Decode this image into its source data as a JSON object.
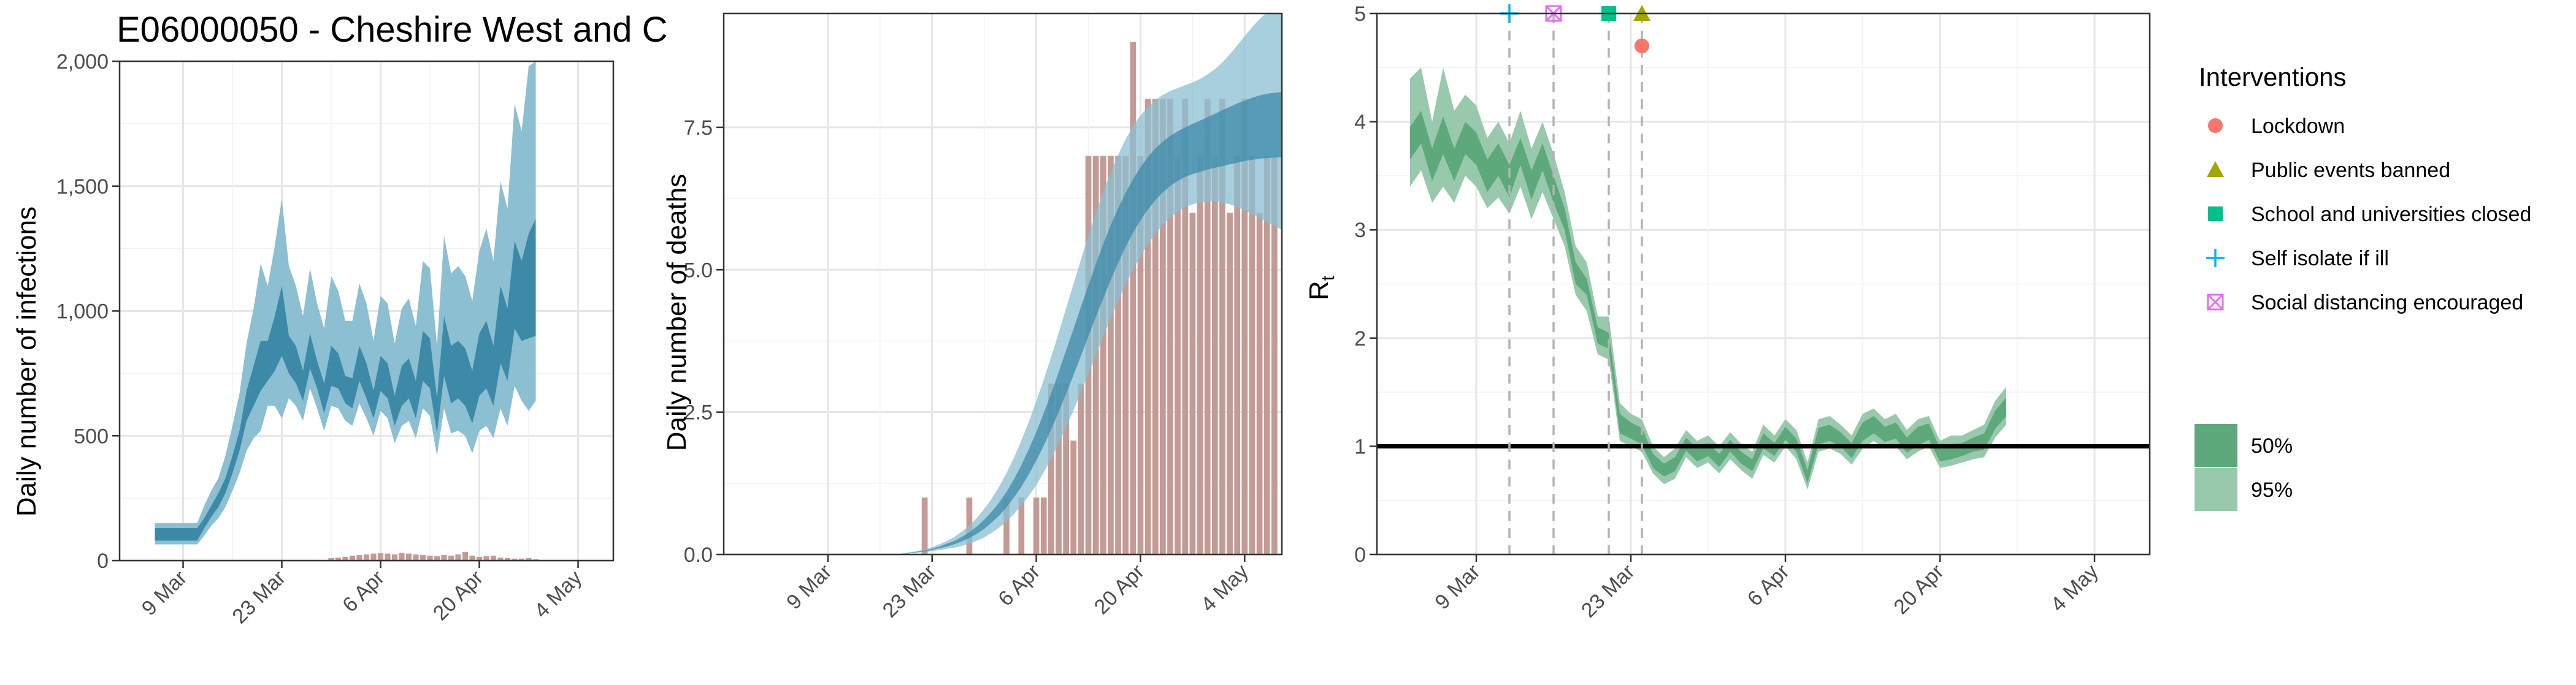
{
  "title": "E06000050 - Cheshire West and C",
  "chart_data": [
    {
      "type": "area",
      "panel": "infections",
      "ylabel": "Daily number of infections",
      "xlabel": "",
      "ylim": [
        0,
        2000
      ],
      "yticks": [
        0,
        500,
        1000,
        1500,
        2000
      ],
      "ytick_labels": [
        "0",
        "500",
        "1,000",
        "1,500",
        "2,000"
      ],
      "xticks": [
        "2020-03-09",
        "2020-03-23",
        "2020-04-06",
        "2020-04-20",
        "2020-05-04"
      ],
      "xtick_labels": [
        "9 Mar",
        "23 Mar",
        "6 Apr",
        "20 Apr",
        "4 May"
      ],
      "x_start": "2020-03-05",
      "series": [
        {
          "band": "95%",
          "lower": [
            65,
            65,
            65,
            65,
            65,
            65,
            65,
            100,
            140,
            170,
            215,
            280,
            350,
            440,
            490,
            520,
            620,
            620,
            570,
            650,
            620,
            560,
            690,
            610,
            520,
            620,
            610,
            560,
            540,
            630,
            570,
            500,
            600,
            570,
            470,
            540,
            560,
            490,
            610,
            580,
            420,
            610,
            510,
            520,
            500,
            430,
            520,
            540,
            490,
            610,
            540,
            700,
            640,
            600,
            640
          ],
          "upper": [
            150,
            150,
            150,
            150,
            150,
            150,
            150,
            220,
            280,
            330,
            420,
            540,
            670,
            870,
            1010,
            1190,
            1100,
            1260,
            1450,
            1180,
            1100,
            980,
            1170,
            1030,
            930,
            1140,
            1080,
            960,
            960,
            1110,
            1030,
            880,
            1060,
            1030,
            870,
            1010,
            1050,
            940,
            1200,
            1170,
            860,
            1300,
            1150,
            1180,
            1140,
            1040,
            1240,
            1330,
            1200,
            1520,
            1410,
            1830,
            1720,
            1980,
            2000
          ]
        },
        {
          "band": "50%",
          "lower": [
            80,
            80,
            80,
            80,
            80,
            80,
            80,
            130,
            175,
            215,
            270,
            350,
            440,
            560,
            620,
            680,
            720,
            760,
            820,
            750,
            710,
            640,
            770,
            690,
            590,
            700,
            690,
            630,
            610,
            720,
            650,
            570,
            680,
            650,
            540,
            620,
            650,
            570,
            720,
            690,
            510,
            740,
            630,
            650,
            620,
            550,
            660,
            690,
            620,
            790,
            720,
            930,
            880,
            890,
            900
          ],
          "upper": [
            130,
            130,
            130,
            130,
            130,
            130,
            130,
            170,
            220,
            270,
            330,
            420,
            520,
            680,
            780,
            880,
            880,
            980,
            1100,
            900,
            860,
            760,
            910,
            800,
            710,
            860,
            830,
            740,
            730,
            860,
            790,
            680,
            820,
            790,
            660,
            780,
            810,
            720,
            920,
            890,
            650,
            980,
            860,
            880,
            850,
            760,
            910,
            960,
            860,
            1100,
            1010,
            1280,
            1200,
            1310,
            1370
          ]
        }
      ],
      "observed": [
        0,
        0,
        0,
        0,
        0,
        0,
        0,
        0,
        0,
        0,
        0,
        0,
        0,
        0,
        0,
        0,
        0,
        0,
        0,
        0,
        0,
        0,
        0,
        0,
        0,
        10,
        12,
        15,
        20,
        22,
        25,
        28,
        30,
        28,
        25,
        30,
        28,
        25,
        22,
        20,
        18,
        22,
        20,
        25,
        35,
        20,
        15,
        18,
        20,
        12,
        10,
        8,
        8,
        10,
        6
      ],
      "colors": {
        "band95": "#8bbfd1",
        "band50": "#3c8aa8",
        "observed": "#c49a94"
      }
    },
    {
      "type": "area",
      "panel": "deaths",
      "ylabel": "Daily number of deaths",
      "xlabel": "",
      "ylim": [
        0,
        9.5
      ],
      "yticks": [
        0,
        2.5,
        5,
        7.5
      ],
      "ytick_labels": [
        "0.0",
        "2.5",
        "5.0",
        "7.5"
      ],
      "xticks": [
        "2020-03-09",
        "2020-03-23",
        "2020-04-06",
        "2020-04-20",
        "2020-05-04"
      ],
      "xtick_labels": [
        "9 Mar",
        "23 Mar",
        "6 Apr",
        "20 Apr",
        "4 May"
      ],
      "x_start": "2020-02-25",
      "x_end": "2020-05-08",
      "series": [
        {
          "band": "95%",
          "lower": [
            0,
            0,
            0,
            0,
            0,
            0,
            0,
            0,
            0,
            0,
            0,
            0,
            0,
            0,
            0,
            0,
            0,
            0,
            0,
            0,
            0,
            0,
            0,
            0.01,
            0.02,
            0.03,
            0.04,
            0.06,
            0.08,
            0.1,
            0.12,
            0.15,
            0.19,
            0.24,
            0.3,
            0.38,
            0.47,
            0.58,
            0.71,
            0.86,
            1.03,
            1.22,
            1.44,
            1.68,
            1.95,
            2.23,
            2.53,
            2.85,
            3.17,
            3.5,
            3.83,
            4.15,
            4.45,
            4.74,
            5.0,
            5.24,
            5.45,
            5.63,
            5.79,
            5.92,
            6.02,
            6.1,
            6.15,
            6.18,
            6.2,
            6.2,
            6.18,
            6.15,
            6.1,
            6.04,
            5.98,
            5.91,
            5.84,
            5.77,
            5.7
          ],
          "upper": [
            0,
            0,
            0,
            0,
            0,
            0,
            0,
            0,
            0,
            0,
            0,
            0,
            0,
            0,
            0,
            0,
            0,
            0,
            0,
            0,
            0,
            0,
            0,
            0.02,
            0.04,
            0.06,
            0.09,
            0.13,
            0.18,
            0.24,
            0.31,
            0.4,
            0.51,
            0.64,
            0.8,
            0.98,
            1.19,
            1.43,
            1.7,
            2.0,
            2.33,
            2.69,
            3.07,
            3.47,
            3.89,
            4.32,
            4.75,
            5.18,
            5.6,
            6.0,
            6.37,
            6.71,
            7.02,
            7.29,
            7.52,
            7.71,
            7.86,
            7.98,
            8.07,
            8.14,
            8.19,
            8.24,
            8.29,
            8.35,
            8.43,
            8.52,
            8.64,
            8.78,
            8.94,
            9.1,
            9.26,
            9.4,
            9.52,
            9.6,
            9.65
          ]
        },
        {
          "band": "50%",
          "lower": [
            0,
            0,
            0,
            0,
            0,
            0,
            0,
            0,
            0,
            0,
            0,
            0,
            0,
            0,
            0,
            0,
            0,
            0,
            0,
            0,
            0,
            0,
            0,
            0.01,
            0.02,
            0.04,
            0.05,
            0.08,
            0.11,
            0.14,
            0.18,
            0.23,
            0.29,
            0.36,
            0.45,
            0.56,
            0.68,
            0.83,
            1.0,
            1.19,
            1.41,
            1.65,
            1.91,
            2.2,
            2.5,
            2.82,
            3.15,
            3.49,
            3.83,
            4.17,
            4.5,
            4.82,
            5.12,
            5.4,
            5.65,
            5.87,
            6.06,
            6.22,
            6.36,
            6.47,
            6.56,
            6.63,
            6.68,
            6.72,
            6.76,
            6.79,
            6.82,
            6.85,
            6.88,
            6.91,
            6.93,
            6.95,
            6.96,
            6.97,
            6.98
          ],
          "upper": [
            0,
            0,
            0,
            0,
            0,
            0,
            0,
            0,
            0,
            0,
            0,
            0,
            0,
            0,
            0,
            0,
            0,
            0,
            0,
            0,
            0,
            0,
            0,
            0.01,
            0.03,
            0.05,
            0.07,
            0.1,
            0.14,
            0.19,
            0.24,
            0.31,
            0.39,
            0.49,
            0.61,
            0.75,
            0.91,
            1.1,
            1.32,
            1.57,
            1.85,
            2.15,
            2.48,
            2.83,
            3.2,
            3.58,
            3.96,
            4.35,
            4.73,
            5.1,
            5.45,
            5.78,
            6.08,
            6.35,
            6.59,
            6.8,
            6.98,
            7.13,
            7.25,
            7.35,
            7.43,
            7.5,
            7.56,
            7.62,
            7.68,
            7.74,
            7.8,
            7.86,
            7.92,
            7.97,
            8.02,
            8.06,
            8.09,
            8.11,
            8.12
          ]
        }
      ],
      "observed": [
        0,
        0,
        0,
        0,
        0,
        0,
        0,
        0,
        0,
        0,
        0,
        0,
        0,
        0,
        0,
        0,
        0,
        0,
        0,
        0,
        0,
        0,
        0,
        0,
        0,
        0,
        1,
        0,
        0,
        0,
        0,
        0,
        1,
        0,
        0,
        0,
        0,
        1,
        0,
        1,
        0,
        1,
        1,
        3,
        3,
        3,
        2,
        3,
        7,
        7,
        7,
        7,
        7,
        7,
        9,
        7,
        8,
        8,
        8,
        8,
        7,
        8,
        6,
        7,
        8,
        7,
        8,
        6,
        7,
        8,
        7,
        6,
        7,
        7
      ],
      "colors": {
        "band95": "#8bbfd1",
        "band50": "#3c8aa8",
        "observed": "#c49a94"
      }
    },
    {
      "type": "line",
      "panel": "rt",
      "ylabel": "R",
      "ylabel_sub": "t",
      "xlabel": "",
      "ylim": [
        0,
        5
      ],
      "yticks": [
        0,
        1,
        2,
        3,
        4,
        5
      ],
      "ytick_labels": [
        "0",
        "1",
        "2",
        "3",
        "4",
        "5"
      ],
      "xticks": [
        "2020-03-09",
        "2020-03-23",
        "2020-04-06",
        "2020-04-20",
        "2020-05-04"
      ],
      "xtick_labels": [
        "9 Mar",
        "23 Mar",
        "6 Apr",
        "20 Apr",
        "4 May"
      ],
      "x_start": "2020-03-03",
      "reference_line": 1,
      "series": [
        {
          "band": "95%",
          "lower": [
            3.4,
            3.55,
            3.25,
            3.4,
            3.25,
            3.5,
            3.4,
            3.2,
            3.3,
            3.15,
            3.4,
            3.1,
            3.35,
            3.1,
            2.85,
            2.4,
            2.25,
            1.85,
            1.8,
            1.05,
            1.0,
            0.95,
            0.75,
            0.65,
            0.7,
            0.9,
            0.8,
            0.85,
            0.75,
            0.88,
            0.78,
            0.7,
            0.92,
            0.85,
            1.0,
            0.88,
            0.6,
            0.95,
            0.98,
            0.93,
            0.83,
            0.98,
            1.05,
            0.98,
            1.0,
            0.88,
            0.95,
            1.0,
            0.8,
            0.82,
            0.85,
            0.88,
            0.9,
            1.08,
            1.2
          ],
          "upper": [
            4.4,
            4.5,
            4.0,
            4.5,
            4.1,
            4.25,
            4.15,
            3.85,
            4.0,
            3.8,
            4.1,
            3.75,
            4.0,
            3.7,
            3.35,
            2.85,
            2.7,
            2.2,
            2.2,
            1.4,
            1.3,
            1.25,
            1.0,
            0.9,
            0.98,
            1.15,
            1.05,
            1.1,
            1.0,
            1.13,
            1.02,
            0.95,
            1.2,
            1.1,
            1.25,
            1.15,
            0.85,
            1.25,
            1.28,
            1.2,
            1.1,
            1.3,
            1.35,
            1.25,
            1.3,
            1.15,
            1.25,
            1.28,
            1.05,
            1.1,
            1.1,
            1.15,
            1.2,
            1.42,
            1.55
          ]
        },
        {
          "band": "50%",
          "lower": [
            3.65,
            3.8,
            3.45,
            3.7,
            3.45,
            3.7,
            3.6,
            3.35,
            3.5,
            3.3,
            3.6,
            3.28,
            3.55,
            3.25,
            3.0,
            2.5,
            2.4,
            1.95,
            1.9,
            1.12,
            1.07,
            1.02,
            0.8,
            0.72,
            0.77,
            0.96,
            0.86,
            0.91,
            0.81,
            0.95,
            0.84,
            0.77,
            0.98,
            0.91,
            1.06,
            0.95,
            0.66,
            1.02,
            1.05,
            1.0,
            0.89,
            1.05,
            1.12,
            1.04,
            1.07,
            0.94,
            1.01,
            1.06,
            0.86,
            0.88,
            0.91,
            0.95,
            0.97,
            1.16,
            1.28
          ],
          "upper": [
            3.95,
            4.1,
            3.75,
            4.05,
            3.75,
            4.0,
            3.9,
            3.65,
            3.8,
            3.6,
            3.85,
            3.55,
            3.8,
            3.5,
            3.2,
            2.7,
            2.55,
            2.1,
            2.05,
            1.3,
            1.22,
            1.17,
            0.93,
            0.84,
            0.9,
            1.08,
            0.98,
            1.03,
            0.93,
            1.06,
            0.95,
            0.88,
            1.12,
            1.03,
            1.18,
            1.07,
            0.78,
            1.17,
            1.2,
            1.13,
            1.03,
            1.22,
            1.28,
            1.18,
            1.22,
            1.08,
            1.18,
            1.21,
            0.98,
            1.02,
            1.03,
            1.08,
            1.12,
            1.33,
            1.45
          ]
        }
      ],
      "interventions": [
        {
          "name": "Self isolate if ill",
          "date": "2020-03-12",
          "symbol": "plus",
          "color": "#00b8e5"
        },
        {
          "name": "Social distancing encouraged",
          "date": "2020-03-16",
          "symbol": "square-x",
          "color": "#e76bf3"
        },
        {
          "name": "School and universities closed",
          "date": "2020-03-21",
          "symbol": "square",
          "color": "#00c08b"
        },
        {
          "name": "Public events banned",
          "date": "2020-03-24",
          "symbol": "triangle",
          "color": "#a3a500"
        },
        {
          "name": "Lockdown",
          "date": "2020-03-24",
          "symbol": "circle",
          "color": "#f8766d"
        }
      ],
      "colors": {
        "band95": "#99c9ad",
        "band50": "#5ea97b",
        "reference": "#000000"
      }
    }
  ],
  "legend": {
    "title": "Interventions",
    "items": [
      {
        "label": "Lockdown",
        "symbol": "circle",
        "color": "#f8766d"
      },
      {
        "label": "Public events banned",
        "symbol": "triangle",
        "color": "#a3a500"
      },
      {
        "label": "School and universities closed",
        "symbol": "square",
        "color": "#00c08b"
      },
      {
        "label": "Self isolate if ill",
        "symbol": "plus",
        "color": "#00b8e5"
      },
      {
        "label": "Social distancing encouraged",
        "symbol": "square-x",
        "color": "#e76bf3"
      }
    ],
    "bands": [
      {
        "label": "50%",
        "color": "#5ea97b"
      },
      {
        "label": "95%",
        "color": "#99c9ad"
      }
    ]
  }
}
